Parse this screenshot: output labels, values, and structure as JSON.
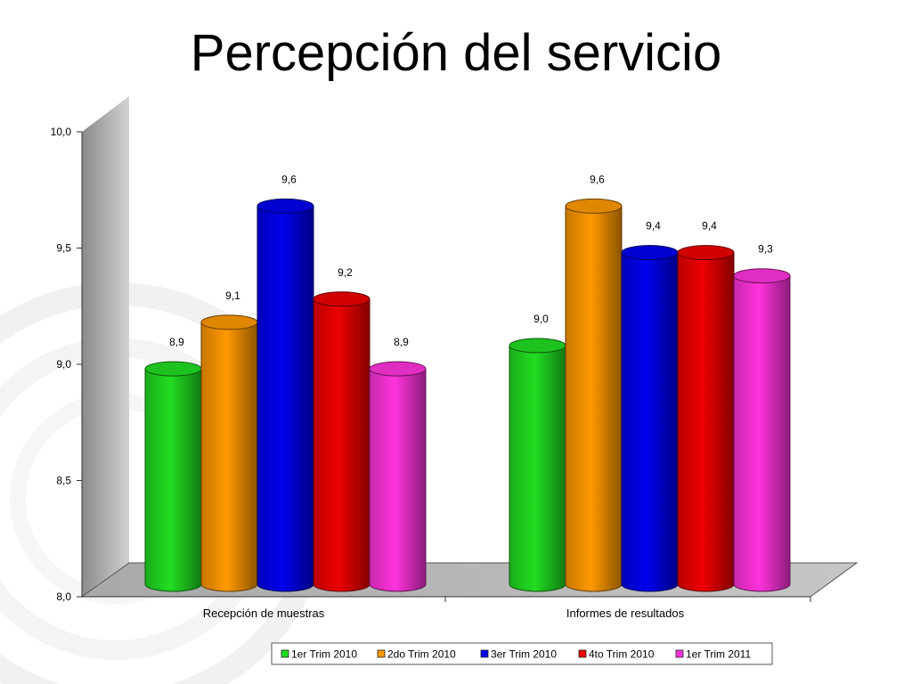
{
  "chart_data": {
    "type": "bar",
    "title": "Percepción del servicio",
    "xlabel": "",
    "ylabel": "",
    "ylim": [
      8.0,
      10.0
    ],
    "yticks": [
      "8,0",
      "8,5",
      "9,0",
      "9,5",
      "10,0"
    ],
    "categories": [
      "Recepción de muestras",
      "Informes de resultados"
    ],
    "series": [
      {
        "name": "1er Trim 2010",
        "color": "#22dd22",
        "values": [
          8.9,
          9.0
        ],
        "labels": [
          "8,9",
          "9,0"
        ]
      },
      {
        "name": "2do Trim 2010",
        "color": "#ff9900",
        "values": [
          9.1,
          9.6
        ],
        "labels": [
          "9,1",
          "9,6"
        ]
      },
      {
        "name": "3er Trim 2010",
        "color": "#0000ee",
        "values": [
          9.6,
          9.4
        ],
        "labels": [
          "9,6",
          "9,4"
        ]
      },
      {
        "name": "4to Trim 2010",
        "color": "#ee0000",
        "values": [
          9.2,
          9.4
        ],
        "labels": [
          "9,2",
          "9,4"
        ]
      },
      {
        "name": "1er Trim 2011",
        "color": "#ff33dd",
        "values": [
          8.9,
          9.3
        ],
        "labels": [
          "8,9",
          "9,3"
        ]
      }
    ],
    "grid": false,
    "legend_position": "bottom",
    "style": "3d-cylinder"
  }
}
